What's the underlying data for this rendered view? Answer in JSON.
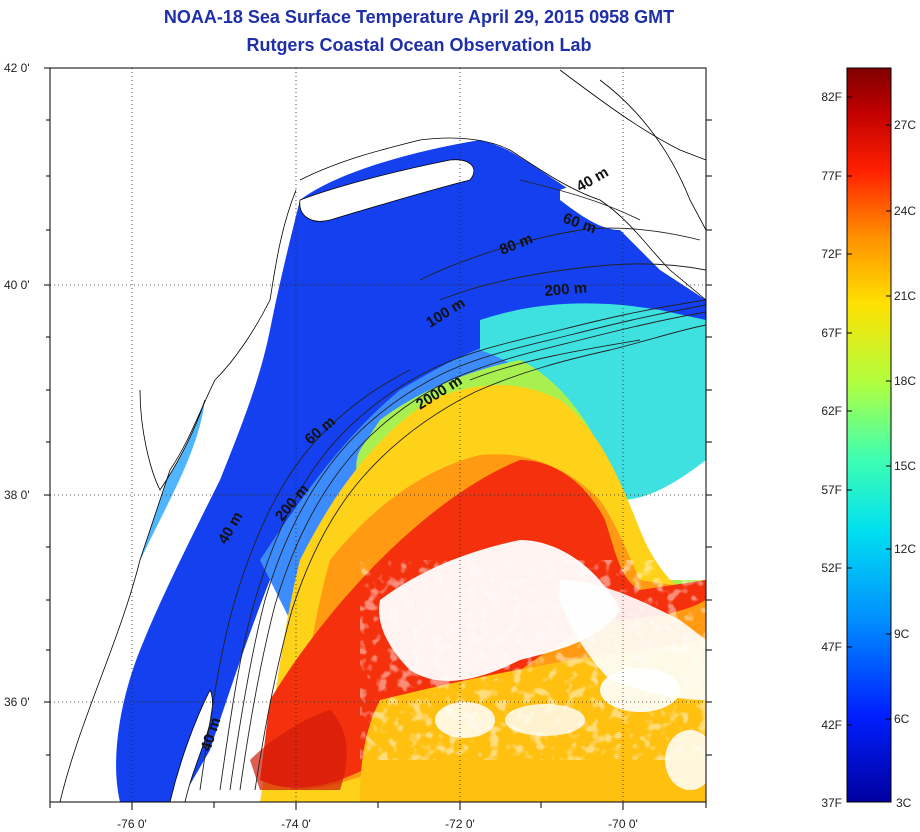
{
  "header": {
    "title": "NOAA-18 Sea Surface Temperature April 29, 2015 0958 GMT",
    "subtitle": "Rutgers Coastal Ocean Observation Lab"
  },
  "map": {
    "lat_ticks": [
      "42 0'",
      "40 0'",
      "38 0'",
      "36 0'"
    ],
    "lon_ticks": [
      "-76 0'",
      "-74 0'",
      "-72 0'",
      "-70 0'"
    ],
    "grid": true,
    "contour_labels": [
      "40 m",
      "60 m",
      "80 m",
      "200 m",
      "100 m",
      "2000 m",
      "60 m",
      "200 m",
      "40 m",
      "40 m"
    ]
  },
  "colorbar": {
    "fahrenheit_labels": [
      "82F",
      "77F",
      "72F",
      "67F",
      "62F",
      "57F",
      "52F",
      "47F",
      "42F",
      "37F"
    ],
    "celsius_labels": [
      "27C",
      "24C",
      "21C",
      "18C",
      "15C",
      "12C",
      "9C",
      "6C",
      "3C"
    ],
    "colors": [
      "#0000a0",
      "#0020ff",
      "#0090ff",
      "#00e0f0",
      "#40ffb0",
      "#b0ff40",
      "#ffe000",
      "#ff9000",
      "#ff2000",
      "#c00000",
      "#800000"
    ]
  }
}
